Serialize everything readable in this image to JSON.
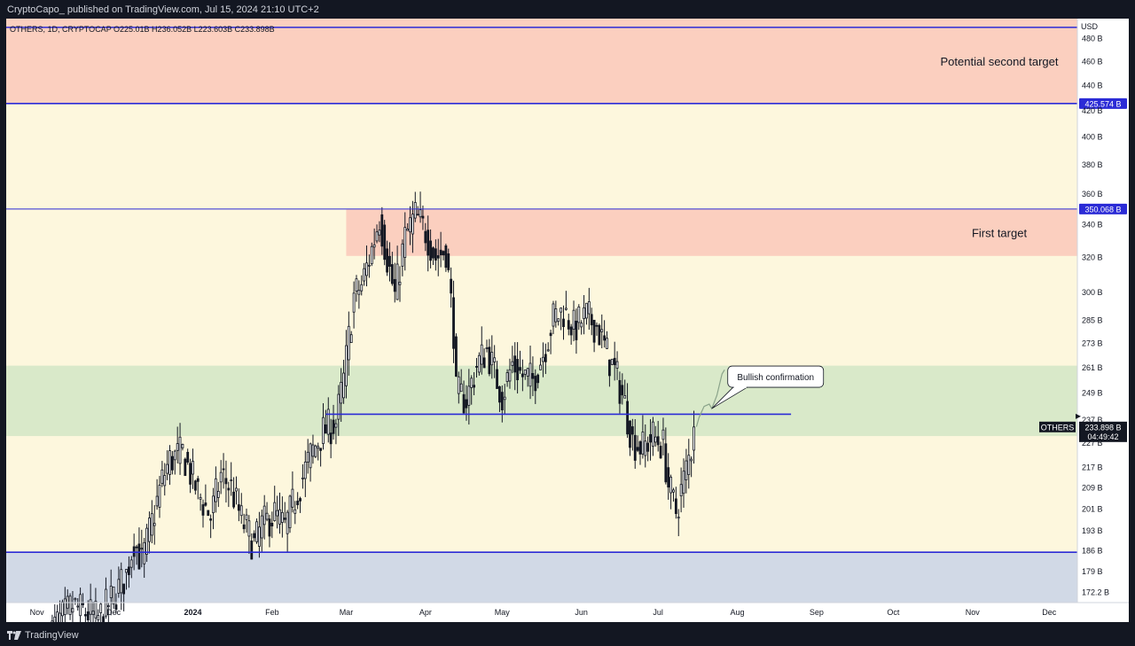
{
  "header": {
    "publisher_line": "CryptoCapo_ published on TradingView.com, Jul 15, 2024 21:10 UTC+2"
  },
  "footer": {
    "logo_text": "TradingView"
  },
  "chart_data": {
    "type": "candlestick",
    "title": "OTHERS, 1D, CRYPTOCAP O225.01B H236.052B L223.603B C233.898B",
    "currency": "USD",
    "y_scale": "log",
    "y_ticks": [
      {
        "value": 480,
        "label": "480 B"
      },
      {
        "value": 460,
        "label": "460 B"
      },
      {
        "value": 440,
        "label": "440 B"
      },
      {
        "value": 420,
        "label": "420 B"
      },
      {
        "value": 400,
        "label": "400 B"
      },
      {
        "value": 380,
        "label": "380 B"
      },
      {
        "value": 360,
        "label": "360 B"
      },
      {
        "value": 340,
        "label": "340 B"
      },
      {
        "value": 320,
        "label": "320 B"
      },
      {
        "value": 300,
        "label": "300 B"
      },
      {
        "value": 285,
        "label": "285 B"
      },
      {
        "value": 273,
        "label": "273 B"
      },
      {
        "value": 261,
        "label": "261 B"
      },
      {
        "value": 249,
        "label": "249 B"
      },
      {
        "value": 237,
        "label": "237 B"
      },
      {
        "value": 227,
        "label": "227 B"
      },
      {
        "value": 217,
        "label": "217 B"
      },
      {
        "value": 209,
        "label": "209 B"
      },
      {
        "value": 201,
        "label": "201 B"
      },
      {
        "value": 193,
        "label": "193 B"
      },
      {
        "value": 186,
        "label": "186 B"
      },
      {
        "value": 179,
        "label": "179 B"
      },
      {
        "value": 172.2,
        "label": "172.2 B"
      }
    ],
    "x_ticks": [
      {
        "date": "2023-11-01",
        "label": "Nov"
      },
      {
        "date": "2023-12-01",
        "label": "Dec"
      },
      {
        "date": "2024-01-01",
        "label": "2024"
      },
      {
        "date": "2024-02-01",
        "label": "Feb"
      },
      {
        "date": "2024-03-01",
        "label": "Mar"
      },
      {
        "date": "2024-04-01",
        "label": "Apr"
      },
      {
        "date": "2024-05-01",
        "label": "May"
      },
      {
        "date": "2024-06-01",
        "label": "Jun"
      },
      {
        "date": "2024-07-01",
        "label": "Jul"
      },
      {
        "date": "2024-08-01",
        "label": "Aug"
      },
      {
        "date": "2024-09-01",
        "label": "Sep"
      },
      {
        "date": "2024-10-01",
        "label": "Oct"
      },
      {
        "date": "2024-11-01",
        "label": "Nov"
      },
      {
        "date": "2024-12-01",
        "label": "Dec"
      }
    ],
    "x_range": [
      "2023-10-20",
      "2024-12-12"
    ],
    "y_range": [
      169,
      498
    ],
    "zones": [
      {
        "name": "potential-second-target-zone",
        "label": "Potential second target",
        "from": 425.574,
        "to": 498,
        "x_from": "2023-10-20",
        "x_to": "2024-12-12",
        "color": "#fbcfbf"
      },
      {
        "name": "first-target-zone",
        "label": "First target",
        "from": 321,
        "to": 350.068,
        "x_from": "2024-03-01",
        "x_to": "2024-12-12",
        "color": "#fbcfbf"
      },
      {
        "name": "support-zone",
        "label": "",
        "from": 230,
        "to": 262,
        "x_from": "2023-10-20",
        "x_to": "2024-12-12",
        "color": "#d9e9c9"
      },
      {
        "name": "demand-zone",
        "label": "",
        "from": 169,
        "to": 185.5,
        "x_from": "2023-10-20",
        "x_to": "2024-12-12",
        "color": "#d1d9e6"
      }
    ],
    "background_color": "#fdf7dd",
    "levels": [
      {
        "name": "level-490",
        "value": 490,
        "x_from": "2023-10-20",
        "x_to": "2024-12-12",
        "label": ""
      },
      {
        "name": "level-425",
        "value": 425.574,
        "x_from": "2023-10-20",
        "x_to": "2024-12-12",
        "label": "425.574 B"
      },
      {
        "name": "level-350",
        "value": 350.068,
        "x_from": "2023-10-20",
        "x_to": "2024-12-12",
        "label": "350.068 B"
      },
      {
        "name": "level-239",
        "value": 239.5,
        "x_from": "2024-02-22",
        "x_to": "2024-08-22",
        "label": ""
      },
      {
        "name": "level-185",
        "value": 185.5,
        "x_from": "2023-10-20",
        "x_to": "2024-12-12",
        "label": ""
      }
    ],
    "level_color": "#2b2bd6",
    "current_price": {
      "series": "OTHERS",
      "value": 233.898,
      "label": "233.898 B",
      "countdown": "04:49:42"
    },
    "annotation": {
      "text": "Bullish confirmation",
      "pointer_date": "2024-07-22",
      "pointer_value": 242
    },
    "projection": [
      {
        "date": "2024-07-16",
        "value": 234
      },
      {
        "date": "2024-07-17",
        "value": 238
      },
      {
        "date": "2024-07-19",
        "value": 243
      },
      {
        "date": "2024-07-21",
        "value": 244
      },
      {
        "date": "2024-07-22",
        "value": 242
      },
      {
        "date": "2024-07-24",
        "value": 248
      },
      {
        "date": "2024-07-26",
        "value": 258
      },
      {
        "date": "2024-07-27",
        "value": 260
      }
    ],
    "bull_color": "#ffffff",
    "bear_color": "#131722",
    "anchors": [
      {
        "date": "2023-11-05",
        "value": 159
      },
      {
        "date": "2023-11-15",
        "value": 168
      },
      {
        "date": "2023-11-25",
        "value": 164
      },
      {
        "date": "2023-12-02",
        "value": 172
      },
      {
        "date": "2023-12-06",
        "value": 178
      },
      {
        "date": "2023-12-09",
        "value": 190
      },
      {
        "date": "2023-12-12",
        "value": 182
      },
      {
        "date": "2023-12-16",
        "value": 196
      },
      {
        "date": "2023-12-20",
        "value": 212
      },
      {
        "date": "2023-12-23",
        "value": 220
      },
      {
        "date": "2023-12-28",
        "value": 223
      },
      {
        "date": "2024-01-03",
        "value": 207
      },
      {
        "date": "2024-01-08",
        "value": 198
      },
      {
        "date": "2024-01-12",
        "value": 214
      },
      {
        "date": "2024-01-16",
        "value": 209
      },
      {
        "date": "2024-01-20",
        "value": 197
      },
      {
        "date": "2024-01-25",
        "value": 188
      },
      {
        "date": "2024-01-28",
        "value": 195
      },
      {
        "date": "2024-02-02",
        "value": 199
      },
      {
        "date": "2024-02-06",
        "value": 194
      },
      {
        "date": "2024-02-10",
        "value": 205
      },
      {
        "date": "2024-02-16",
        "value": 222
      },
      {
        "date": "2024-02-21",
        "value": 232
      },
      {
        "date": "2024-02-26",
        "value": 236
      },
      {
        "date": "2024-02-29",
        "value": 255
      },
      {
        "date": "2024-03-04",
        "value": 298
      },
      {
        "date": "2024-03-07",
        "value": 304
      },
      {
        "date": "2024-03-11",
        "value": 325
      },
      {
        "date": "2024-03-14",
        "value": 345
      },
      {
        "date": "2024-03-17",
        "value": 320
      },
      {
        "date": "2024-03-20",
        "value": 298
      },
      {
        "date": "2024-03-24",
        "value": 332
      },
      {
        "date": "2024-03-28",
        "value": 346
      },
      {
        "date": "2024-04-01",
        "value": 336
      },
      {
        "date": "2024-04-05",
        "value": 320
      },
      {
        "date": "2024-04-09",
        "value": 325
      },
      {
        "date": "2024-04-12",
        "value": 280
      },
      {
        "date": "2024-04-13",
        "value": 249
      },
      {
        "date": "2024-04-17",
        "value": 246
      },
      {
        "date": "2024-04-21",
        "value": 262
      },
      {
        "date": "2024-04-25",
        "value": 270
      },
      {
        "date": "2024-05-01",
        "value": 248
      },
      {
        "date": "2024-05-05",
        "value": 263
      },
      {
        "date": "2024-05-09",
        "value": 257
      },
      {
        "date": "2024-05-13",
        "value": 255
      },
      {
        "date": "2024-05-17",
        "value": 268
      },
      {
        "date": "2024-05-21",
        "value": 286
      },
      {
        "date": "2024-05-25",
        "value": 290
      },
      {
        "date": "2024-05-29",
        "value": 281
      },
      {
        "date": "2024-06-03",
        "value": 287
      },
      {
        "date": "2024-06-07",
        "value": 282
      },
      {
        "date": "2024-06-11",
        "value": 268
      },
      {
        "date": "2024-06-15",
        "value": 256
      },
      {
        "date": "2024-06-18",
        "value": 244
      },
      {
        "date": "2024-06-21",
        "value": 228
      },
      {
        "date": "2024-06-25",
        "value": 225
      },
      {
        "date": "2024-06-29",
        "value": 230
      },
      {
        "date": "2024-07-03",
        "value": 226
      },
      {
        "date": "2024-07-05",
        "value": 210
      },
      {
        "date": "2024-07-08",
        "value": 200
      },
      {
        "date": "2024-07-11",
        "value": 212
      },
      {
        "date": "2024-07-14",
        "value": 225
      },
      {
        "date": "2024-07-15",
        "value": 233.898
      }
    ]
  }
}
